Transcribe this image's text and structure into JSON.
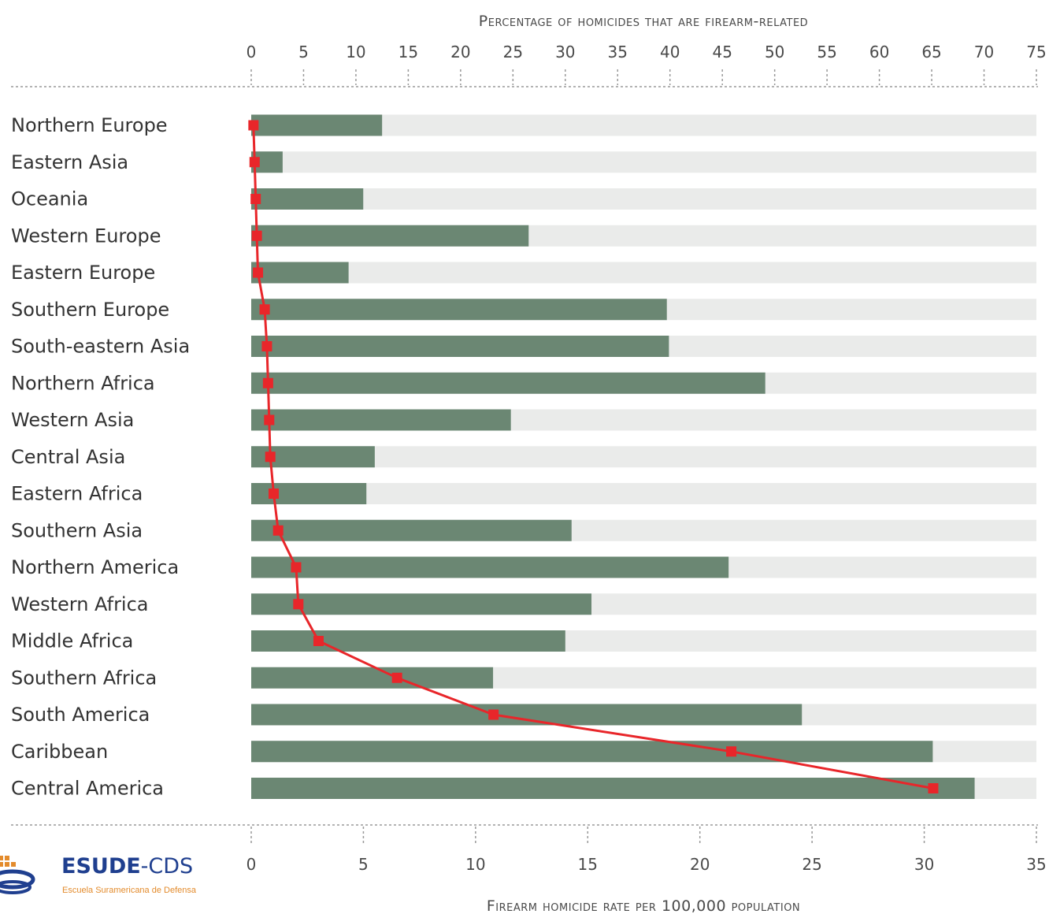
{
  "chart_data": {
    "type": "bar",
    "top_axis_title": "Percentage of homicides that are firearm-related",
    "bottom_axis_title": "Firearm homicide rate per 100,000 population",
    "categories": [
      "Northern Europe",
      "Eastern Asia",
      "Oceania",
      "Western Europe",
      "Eastern Europe",
      "Southern Europe",
      "South-eastern Asia",
      "Northern Africa",
      "Western Asia",
      "Central Asia",
      "Eastern Africa",
      "Southern Asia",
      "Northern America",
      "Western Africa",
      "Middle Africa",
      "Southern Africa",
      "South America",
      "Caribbean",
      "Central America"
    ],
    "series": [
      {
        "axis": "top",
        "mark": "bar",
        "values": [
          12.5,
          3,
          10.7,
          26.5,
          9.3,
          39.7,
          39.9,
          49.1,
          24.8,
          11.8,
          11.0,
          30.6,
          45.6,
          32.5,
          30.0,
          23.1,
          52.6,
          65.1,
          69.1
        ]
      },
      {
        "axis": "bottom",
        "mark": "line",
        "values": [
          0.1,
          0.15,
          0.2,
          0.25,
          0.3,
          0.6,
          0.7,
          0.75,
          0.8,
          0.85,
          1.0,
          1.2,
          2.0,
          2.1,
          3.0,
          6.5,
          10.8,
          21.4,
          30.4
        ]
      }
    ],
    "top_axis": {
      "min": 0,
      "max": 75,
      "ticks": [
        "0",
        "5",
        "10",
        "15",
        "20",
        "25",
        "30",
        "35",
        "40",
        "45",
        "50",
        "55",
        "60",
        "65",
        "70",
        "75"
      ]
    },
    "bottom_axis": {
      "min": 0,
      "max": 35,
      "ticks": [
        "0",
        "5",
        "10",
        "15",
        "20",
        "25",
        "30",
        "35"
      ]
    },
    "colors": {
      "bar": "#6b8773",
      "track": "#eaebea",
      "line": "#e8262a",
      "text": "#333333",
      "axis": "#999999"
    },
    "grid": false
  },
  "logo": {
    "brand": "ESUDE",
    "brand_suffix": "-CDS",
    "subtitle": "Escuela Suramericana de Defensa",
    "icon": "globe-logo-icon"
  }
}
